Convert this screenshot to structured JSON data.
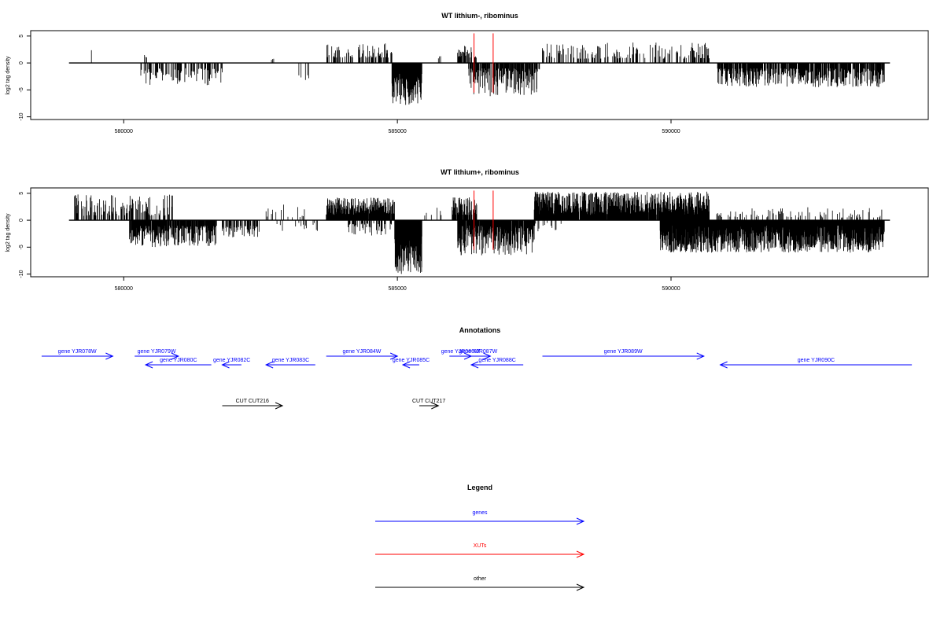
{
  "chart_data": [
    {
      "type": "bar",
      "title": "WT lithium-, ribominus",
      "xlabel": "",
      "ylabel": "log2 tag density",
      "xlim": [
        578300,
        594700
      ],
      "ylim": [
        -10.5,
        6
      ],
      "x_ticks": [
        580000,
        585000,
        590000
      ],
      "y_ticks": [
        5,
        0,
        -5,
        -10
      ],
      "baseline": {
        "x_start": 579000,
        "x_end": 594000
      },
      "highlight_color": "#ff0000",
      "highlights": [
        {
          "x": 586400,
          "top": 5.5
        },
        {
          "x": 586750,
          "top": 5.5
        }
      ],
      "segments": [
        {
          "strand": "+",
          "x_start": 579050,
          "x_end": 579700,
          "min": 0.8,
          "max": 2.7,
          "step": 60,
          "density": 0.25
        },
        {
          "strand": "-",
          "x_start": 580300,
          "x_end": 581800,
          "min": 1.0,
          "max": 4.2,
          "step": 12,
          "density": 0.6
        },
        {
          "strand": "+",
          "x_start": 580380,
          "x_end": 580420,
          "min": 1.0,
          "max": 1.5,
          "step": 20,
          "density": 1
        },
        {
          "strand": "+",
          "x_start": 582700,
          "x_end": 582740,
          "min": 0.5,
          "max": 0.9,
          "step": 20,
          "density": 1
        },
        {
          "strand": "-",
          "x_start": 583200,
          "x_end": 583400,
          "min": 1.0,
          "max": 3.5,
          "step": 20,
          "density": 0.5
        },
        {
          "strand": "+",
          "x_start": 583700,
          "x_end": 584900,
          "min": 1.0,
          "max": 3.8,
          "step": 10,
          "density": 0.55
        },
        {
          "strand": "-",
          "x_start": 584900,
          "x_end": 585450,
          "min": 2.0,
          "max": 7.8,
          "step": 4,
          "density": 1
        },
        {
          "strand": "+",
          "x_start": 585750,
          "x_end": 585790,
          "min": 0.8,
          "max": 1.4,
          "step": 20,
          "density": 1
        },
        {
          "strand": "+",
          "x_start": 586100,
          "x_end": 586450,
          "min": 1.0,
          "max": 3.5,
          "step": 8,
          "density": 0.6
        },
        {
          "strand": "-",
          "x_start": 586300,
          "x_end": 587600,
          "min": 1.0,
          "max": 6.2,
          "step": 6,
          "density": 0.7
        },
        {
          "strand": "+",
          "x_start": 587650,
          "x_end": 590700,
          "min": 0.8,
          "max": 3.8,
          "step": 12,
          "density": 0.45
        },
        {
          "strand": "-",
          "x_start": 590850,
          "x_end": 593900,
          "min": 1.0,
          "max": 4.5,
          "step": 6,
          "density": 0.75
        }
      ]
    },
    {
      "type": "bar",
      "title": "WT lithium+, ribominus",
      "xlabel": "",
      "ylabel": "log2 tag density",
      "xlim": [
        578300,
        594700
      ],
      "ylim": [
        -10.5,
        6
      ],
      "x_ticks": [
        580000,
        585000,
        590000
      ],
      "y_ticks": [
        5,
        0,
        -5,
        -10
      ],
      "baseline": {
        "x_start": 579000,
        "x_end": 594000
      },
      "highlight_color": "#ff0000",
      "highlights": [
        {
          "x": 586400,
          "top": 5.5
        },
        {
          "x": 586750,
          "top": 5.5
        }
      ],
      "segments": [
        {
          "strand": "+",
          "x_start": 579100,
          "x_end": 580900,
          "min": 0.8,
          "max": 4.8,
          "step": 8,
          "density": 0.55
        },
        {
          "strand": "-",
          "x_start": 580100,
          "x_end": 581700,
          "min": 1.0,
          "max": 5.0,
          "step": 6,
          "density": 0.8
        },
        {
          "strand": "-",
          "x_start": 581800,
          "x_end": 582500,
          "min": 1.0,
          "max": 3.2,
          "step": 8,
          "density": 0.6
        },
        {
          "strand": "+",
          "x_start": 582600,
          "x_end": 583300,
          "min": 0.5,
          "max": 3.0,
          "step": 20,
          "density": 0.35
        },
        {
          "strand": "-",
          "x_start": 582800,
          "x_end": 583600,
          "min": 0.5,
          "max": 2.0,
          "step": 20,
          "density": 0.4
        },
        {
          "strand": "+",
          "x_start": 583700,
          "x_end": 584950,
          "min": 1.0,
          "max": 4.2,
          "step": 4,
          "density": 0.85
        },
        {
          "strand": "-",
          "x_start": 584100,
          "x_end": 584900,
          "min": 0.5,
          "max": 3.0,
          "step": 12,
          "density": 0.5
        },
        {
          "strand": "-",
          "x_start": 584950,
          "x_end": 585450,
          "min": 3.0,
          "max": 10.0,
          "step": 3,
          "density": 1
        },
        {
          "strand": "+",
          "x_start": 585500,
          "x_end": 585800,
          "min": 0.8,
          "max": 2.8,
          "step": 15,
          "density": 0.4
        },
        {
          "strand": "+",
          "x_start": 586000,
          "x_end": 586450,
          "min": 1.0,
          "max": 4.5,
          "step": 5,
          "density": 0.7
        },
        {
          "strand": "-",
          "x_start": 586100,
          "x_end": 587500,
          "min": 1.0,
          "max": 6.5,
          "step": 4,
          "density": 0.85
        },
        {
          "strand": "+",
          "x_start": 587500,
          "x_end": 590700,
          "min": 1.0,
          "max": 5.3,
          "step": 3,
          "density": 0.8
        },
        {
          "strand": "-",
          "x_start": 587300,
          "x_end": 588000,
          "min": 0.5,
          "max": 2.5,
          "step": 15,
          "density": 0.4
        },
        {
          "strand": "-",
          "x_start": 589800,
          "x_end": 593900,
          "min": 1.0,
          "max": 6.0,
          "step": 3,
          "density": 0.9
        },
        {
          "strand": "+",
          "x_start": 590700,
          "x_end": 593900,
          "min": 0.5,
          "max": 2.5,
          "step": 15,
          "density": 0.35
        }
      ]
    }
  ],
  "annotations": {
    "title": "Annotations",
    "genes_color": "#0000ff",
    "other_color": "#000000",
    "features": [
      {
        "label": "gene YJR078W",
        "strand": "+",
        "kind": "genes",
        "x_start": 578500,
        "x_end": 579800,
        "row": 0
      },
      {
        "label": "gene YJR079W",
        "strand": "+",
        "kind": "genes",
        "x_start": 580200,
        "x_end": 581000,
        "row": 0
      },
      {
        "label": "gene YJR080C",
        "strand": "-",
        "kind": "genes",
        "x_start": 580400,
        "x_end": 581600,
        "row": 1
      },
      {
        "label": "gene YJR082C",
        "strand": "-",
        "kind": "genes",
        "x_start": 581800,
        "x_end": 582150,
        "row": 1
      },
      {
        "label": "gene YJR083C",
        "strand": "-",
        "kind": "genes",
        "x_start": 582600,
        "x_end": 583500,
        "row": 1
      },
      {
        "label": "gene YJR084W",
        "strand": "+",
        "kind": "genes",
        "x_start": 583700,
        "x_end": 585000,
        "row": 0
      },
      {
        "label": "gene YJR085C",
        "strand": "-",
        "kind": "genes",
        "x_start": 585100,
        "x_end": 585400,
        "row": 1
      },
      {
        "label": "gene YJR086W",
        "strand": "+",
        "kind": "genes",
        "x_start": 585950,
        "x_end": 586350,
        "row": 0
      },
      {
        "label": "gene YJR087W",
        "strand": "+",
        "kind": "genes",
        "x_start": 586250,
        "x_end": 586700,
        "row": 0
      },
      {
        "label": "gene YJR088C",
        "strand": "-",
        "kind": "genes",
        "x_start": 586350,
        "x_end": 587300,
        "row": 1
      },
      {
        "label": "gene YJR089W",
        "strand": "+",
        "kind": "genes",
        "x_start": 587650,
        "x_end": 590600,
        "row": 0
      },
      {
        "label": "gene YJR090C",
        "strand": "-",
        "kind": "genes",
        "x_start": 590900,
        "x_end": 594400,
        "row": 1
      },
      {
        "label": "CUT CUT216",
        "strand": "+",
        "kind": "other",
        "x_start": 581800,
        "x_end": 582900,
        "row": 2
      },
      {
        "label": "CUT CUT217",
        "strand": "+",
        "kind": "other",
        "x_start": 585400,
        "x_end": 585750,
        "row": 2
      }
    ]
  },
  "legend": {
    "title": "Legend",
    "items": [
      {
        "label": "genes",
        "color": "#0000ff"
      },
      {
        "label": "XUTs",
        "color": "#ff0000"
      },
      {
        "label": "other",
        "color": "#000000"
      }
    ]
  }
}
